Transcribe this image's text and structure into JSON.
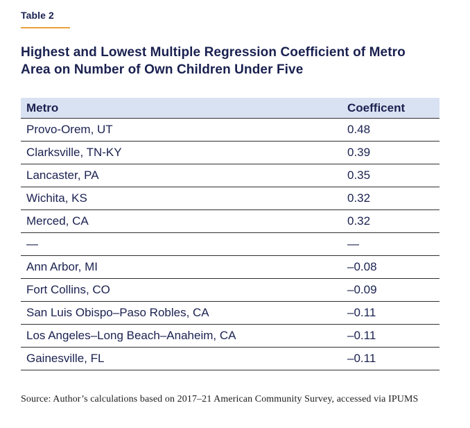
{
  "colors": {
    "text_navy": "#1a2150",
    "accent_orange": "#eaa23c",
    "header_bg": "#d9e2f2",
    "divider": "#2e2e33",
    "source_text": "#1c1c1c"
  },
  "eyebrow": {
    "label": "Table 2"
  },
  "title": {
    "text": "Highest and Lowest Multiple Regression Coefficient of Metro Area on Number of Own Children Under Five"
  },
  "table": {
    "columns": [
      "Metro",
      "Coefficent"
    ],
    "rows": [
      {
        "metro": "Provo-Orem, UT",
        "coefficient": "0.48"
      },
      {
        "metro": "Clarksville, TN-KY",
        "coefficient": "0.39"
      },
      {
        "metro": "Lancaster, PA",
        "coefficient": "0.35"
      },
      {
        "metro": "Wichita, KS",
        "coefficient": "0.32"
      },
      {
        "metro": "Merced, CA",
        "coefficient": "0.32"
      },
      {
        "metro": "—",
        "coefficient": "—"
      },
      {
        "metro": "Ann Arbor, MI",
        "coefficient": "–0.08"
      },
      {
        "metro": "Fort Collins, CO",
        "coefficient": "–0.09"
      },
      {
        "metro": "San Luis Obispo–Paso Robles, CA",
        "coefficient": "–0.11"
      },
      {
        "metro": "Los Angeles–Long Beach–Anaheim, CA",
        "coefficient": "–0.11"
      },
      {
        "metro": "Gainesville, FL",
        "coefficient": "–0.11"
      }
    ]
  },
  "source": {
    "text": "Source: Author’s calculations based on 2017–21 American Community Survey, accessed via IPUMS"
  },
  "chart_data": {
    "type": "table",
    "title": "Highest and Lowest Multiple Regression Coefficient of Metro Area on Number of Own Children Under Five",
    "columns": [
      "Metro",
      "Coefficent"
    ],
    "highest": [
      {
        "metro": "Provo-Orem, UT",
        "coefficient": 0.48
      },
      {
        "metro": "Clarksville, TN-KY",
        "coefficient": 0.39
      },
      {
        "metro": "Lancaster, PA",
        "coefficient": 0.35
      },
      {
        "metro": "Wichita, KS",
        "coefficient": 0.32
      },
      {
        "metro": "Merced, CA",
        "coefficient": 0.32
      }
    ],
    "lowest": [
      {
        "metro": "Ann Arbor, MI",
        "coefficient": -0.08
      },
      {
        "metro": "Fort Collins, CO",
        "coefficient": -0.09
      },
      {
        "metro": "San Luis Obispo–Paso Robles, CA",
        "coefficient": -0.11
      },
      {
        "metro": "Los Angeles–Long Beach–Anaheim, CA",
        "coefficient": -0.11
      },
      {
        "metro": "Gainesville, FL",
        "coefficient": -0.11
      }
    ]
  }
}
